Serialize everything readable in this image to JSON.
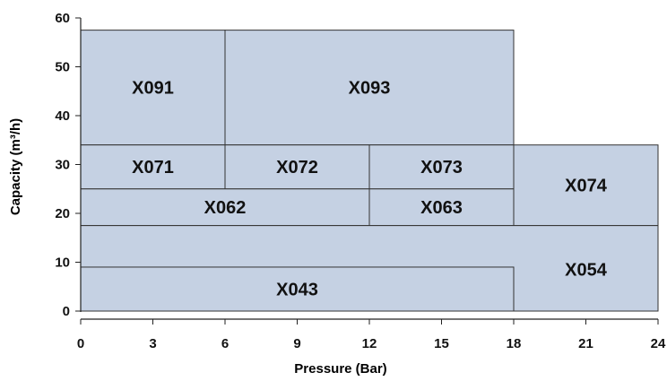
{
  "chart_data": {
    "type": "area",
    "xlabel": "Pressure (Bar)",
    "ylabel": "Capacity (m³/h)",
    "xlim": [
      0,
      24
    ],
    "ylim": [
      0,
      60
    ],
    "x_ticks": [
      "0",
      "3",
      "6",
      "9",
      "12",
      "15",
      "18",
      "21",
      "24"
    ],
    "y_ticks": [
      "0",
      "10",
      "20",
      "30",
      "40",
      "50",
      "60"
    ],
    "grid": false,
    "colors": {
      "fill": "#c5d1e3",
      "edge": "#333333",
      "axis": "#222222",
      "text": "#111111"
    },
    "series": [
      {
        "name": "X091",
        "pressure": [
          0,
          6
        ],
        "capacity": [
          34,
          57.5
        ]
      },
      {
        "name": "X093",
        "pressure": [
          6,
          18
        ],
        "capacity": [
          34,
          57.5
        ]
      },
      {
        "name": "X071",
        "pressure": [
          0,
          6
        ],
        "capacity": [
          25,
          34
        ]
      },
      {
        "name": "X072",
        "pressure": [
          6,
          12
        ],
        "capacity": [
          25,
          34
        ]
      },
      {
        "name": "X073",
        "pressure": [
          12,
          18
        ],
        "capacity": [
          25,
          34
        ]
      },
      {
        "name": "X062",
        "pressure": [
          0,
          12
        ],
        "capacity": [
          17.5,
          25
        ]
      },
      {
        "name": "X063",
        "pressure": [
          12,
          18
        ],
        "capacity": [
          17.5,
          25
        ]
      },
      {
        "name": "X074",
        "pressure": [
          18,
          24
        ],
        "capacity": [
          17.5,
          34
        ]
      },
      {
        "name": "X054",
        "pressure": [
          0,
          24
        ],
        "capacity": [
          0,
          17.5
        ],
        "label_pressure": 21,
        "label_capacity": 8.5
      },
      {
        "name": "X043",
        "pressure": [
          0,
          18
        ],
        "capacity": [
          0,
          9
        ]
      }
    ]
  }
}
